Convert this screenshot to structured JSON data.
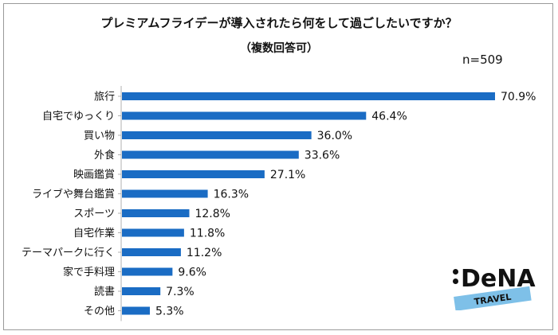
{
  "chart_data": {
    "type": "bar",
    "orientation": "horizontal",
    "title": "プレミアムフライデーが導入されたら何をして過ごしたいですか？",
    "subtitle": "（複数回答可）",
    "annotation": "n=509",
    "categories": [
      "旅行",
      "自宅でゆっくり",
      "買い物",
      "外食",
      "映画鑑賞",
      "ライブや舞台鑑賞",
      "スポーツ",
      "自宅作業",
      "テーマパークに行く",
      "家で手料理",
      "読書",
      "その他"
    ],
    "values": [
      70.9,
      46.4,
      36.0,
      33.6,
      27.1,
      16.3,
      12.8,
      11.8,
      11.2,
      9.6,
      7.3,
      5.3
    ],
    "value_labels": [
      "70.9%",
      "46.4%",
      "36.0%",
      "33.6%",
      "27.1%",
      "16.3%",
      "12.8%",
      "11.8%",
      "11.2%",
      "9.6%",
      "7.3%",
      "5.3%"
    ],
    "xlim": [
      0,
      100
    ],
    "grid": false,
    "bar_color": "#1a6cc4"
  },
  "logo": {
    "main": "DeNA",
    "sub": "TRAVEL",
    "sub_color": "#7ec0e8"
  }
}
